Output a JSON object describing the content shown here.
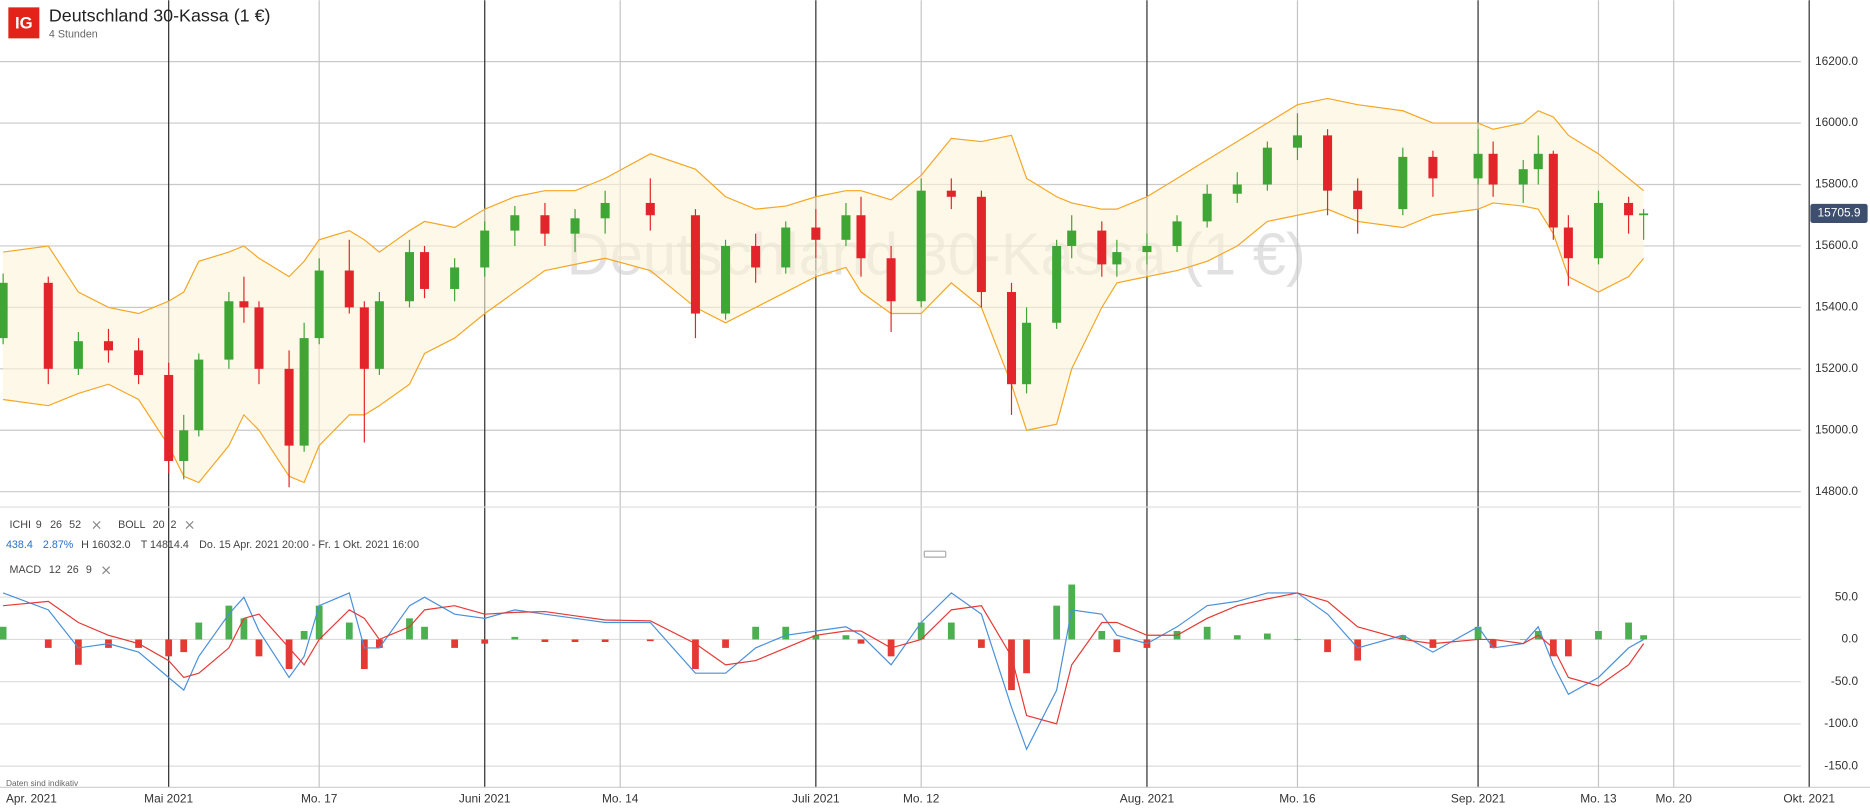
{
  "header": {
    "logo": "IG",
    "title": "Deutschland 30-Kassa (1 €)",
    "subtitle": "4 Stunden"
  },
  "indicators": [
    {
      "name": "ICHI",
      "params": [
        9,
        26,
        52
      ]
    },
    {
      "name": "BOLL",
      "params": [
        20,
        2
      ]
    }
  ],
  "stats": {
    "change": "438.4",
    "change_pct": "2.87%",
    "high": "H 16032.0",
    "low": "T 14814.4",
    "range": "Do. 15 Apr. 2021 20:00 - Fr. 1 Okt. 2021 16:00"
  },
  "macd_label": {
    "name": "MACD",
    "params": [
      12,
      26,
      9
    ]
  },
  "footnote": "Daten sind indikativ",
  "chart_data": {
    "type": "candlestick",
    "x": [
      "2021-04-16",
      "2021-04-21",
      "2021-04-23",
      "2021-04-27",
      "2021-04-29",
      "2021-05-03",
      "2021-05-04",
      "2021-05-05",
      "2021-05-07",
      "2021-05-10",
      "2021-05-11",
      "2021-05-13",
      "2021-05-14",
      "2021-05-17",
      "2021-05-19",
      "2021-05-20",
      "2021-05-21",
      "2021-05-25",
      "2021-05-26",
      "2021-05-28",
      "2021-06-01",
      "2021-06-03",
      "2021-06-07",
      "2021-06-09",
      "2021-06-11",
      "2021-06-16",
      "2021-06-21",
      "2021-06-23",
      "2021-06-25",
      "2021-06-29",
      "2021-07-01",
      "2021-07-05",
      "2021-07-06",
      "2021-07-08",
      "2021-07-12",
      "2021-07-14",
      "2021-07-16",
      "2021-07-20",
      "2021-07-21",
      "2021-07-23",
      "2021-07-26",
      "2021-07-28",
      "2021-07-29",
      "2021-08-02",
      "2021-08-04",
      "2021-08-06",
      "2021-08-10",
      "2021-08-12",
      "2021-08-16",
      "2021-08-18",
      "2021-08-20",
      "2021-08-25",
      "2021-08-27",
      "2021-09-01",
      "2021-09-02",
      "2021-09-06",
      "2021-09-07",
      "2021-09-08",
      "2021-09-09",
      "2021-09-13",
      "2021-09-15",
      "2021-09-16"
    ],
    "xlim": [
      "2021-04-15",
      "2021-10-01"
    ],
    "xticks": [
      {
        "value": "2021-04-15",
        "label": "Apr. 2021"
      },
      {
        "value": "2021-05-01",
        "label": "Mai 2021"
      },
      {
        "value": "2021-05-17",
        "label": "Mo. 17"
      },
      {
        "value": "2021-06-01",
        "label": "Juni 2021"
      },
      {
        "value": "2021-06-14",
        "label": "Mo. 14"
      },
      {
        "value": "2021-07-01",
        "label": "Juli 2021"
      },
      {
        "value": "2021-07-12",
        "label": "Mo. 12"
      },
      {
        "value": "2021-08-01",
        "label": "Aug. 2021"
      },
      {
        "value": "2021-08-16",
        "label": "Mo. 16"
      },
      {
        "value": "2021-09-01",
        "label": "Sep. 2021"
      },
      {
        "value": "2021-09-13",
        "label": "Mo. 13"
      },
      {
        "value": "2021-09-20",
        "label": "Mo. 20"
      },
      {
        "value": "2021-10-01",
        "label": "Okt. 2021"
      }
    ],
    "open": [
      15300,
      15480,
      15200,
      15290,
      15260,
      15180,
      14900,
      15000,
      15230,
      15420,
      15400,
      15200,
      14950,
      15300,
      15520,
      15400,
      15200,
      15420,
      15580,
      15460,
      15530,
      15650,
      15700,
      15640,
      15690,
      15740,
      15700,
      15380,
      15600,
      15530,
      15660,
      15620,
      15700,
      15560,
      15420,
      15780,
      15760,
      15450,
      15150,
      15350,
      15600,
      15650,
      15540,
      15580,
      15600,
      15680,
      15770,
      15800,
      15920,
      15960,
      15780,
      15720,
      15890,
      15820,
      15900,
      15800,
      15850,
      15900,
      15660,
      15560,
      15740,
      15700
    ],
    "high": [
      15510,
      15500,
      15320,
      15330,
      15300,
      15220,
      15050,
      15250,
      15450,
      15500,
      15420,
      15260,
      15350,
      15560,
      15620,
      15420,
      15450,
      15620,
      15600,
      15560,
      15680,
      15730,
      15740,
      15720,
      15780,
      15820,
      15720,
      15620,
      15640,
      15680,
      15720,
      15740,
      15760,
      15600,
      15820,
      15820,
      15780,
      15480,
      15400,
      15620,
      15700,
      15680,
      15620,
      15640,
      15700,
      15800,
      15840,
      15940,
      16032,
      15980,
      15820,
      15920,
      15910,
      15980,
      15940,
      15880,
      15960,
      15910,
      15700,
      15780,
      15760,
      15720
    ],
    "low": [
      15280,
      15150,
      15180,
      15220,
      15150,
      14860,
      14840,
      14980,
      15200,
      15350,
      15150,
      14814.4,
      14930,
      15280,
      15380,
      14960,
      15180,
      15400,
      15430,
      15420,
      15500,
      15600,
      15600,
      15580,
      15640,
      15650,
      15300,
      15360,
      15480,
      15510,
      15560,
      15600,
      15500,
      15320,
      15400,
      15720,
      15400,
      15050,
      15120,
      15330,
      15560,
      15500,
      15500,
      15540,
      15580,
      15660,
      15740,
      15780,
      15880,
      15700,
      15640,
      15700,
      15760,
      15800,
      15760,
      15740,
      15800,
      15620,
      15470,
      15540,
      15640,
      15620
    ],
    "close": [
      15480,
      15200,
      15290,
      15260,
      15180,
      14900,
      15000,
      15230,
      15420,
      15400,
      15200,
      14950,
      15300,
      15520,
      15400,
      15200,
      15420,
      15580,
      15460,
      15530,
      15650,
      15700,
      15640,
      15690,
      15740,
      15700,
      15380,
      15600,
      15530,
      15660,
      15620,
      15700,
      15560,
      15420,
      15780,
      15760,
      15450,
      15150,
      15350,
      15600,
      15650,
      15540,
      15580,
      15600,
      15680,
      15770,
      15800,
      15920,
      15960,
      15780,
      15720,
      15890,
      15820,
      15900,
      15800,
      15850,
      15900,
      15660,
      15560,
      15740,
      15700,
      15705.9
    ],
    "up_color": "#3fa535",
    "down_color": "#e3242b",
    "ylim": [
      14750,
      16400
    ],
    "yticks": [
      {
        "value": 14800,
        "label": "14800.0"
      },
      {
        "value": 15000,
        "label": "15000.0"
      },
      {
        "value": 15200,
        "label": "15200.0"
      },
      {
        "value": 15400,
        "label": "15400.0"
      },
      {
        "value": 15600,
        "label": "15600.0"
      },
      {
        "value": 15800,
        "label": "15800.0"
      },
      {
        "value": 16000,
        "label": "16000.0"
      },
      {
        "value": 16200,
        "label": "16200.0"
      }
    ],
    "last_price": 15705.9,
    "bollinger": {
      "color": "#f5a623",
      "upper": [
        15580,
        15600,
        15450,
        15400,
        15380,
        15420,
        15450,
        15550,
        15580,
        15600,
        15560,
        15500,
        15550,
        15620,
        15650,
        15620,
        15580,
        15650,
        15680,
        15660,
        15720,
        15760,
        15780,
        15780,
        15820,
        15900,
        15850,
        15760,
        15720,
        15730,
        15760,
        15780,
        15780,
        15750,
        15830,
        15950,
        15940,
        15960,
        15820,
        15760,
        15740,
        15720,
        15720,
        15760,
        15820,
        15880,
        15940,
        16000,
        16060,
        16080,
        16060,
        16040,
        16000,
        16000,
        15980,
        16000,
        16040,
        16020,
        15960,
        15900,
        15820,
        15780
      ],
      "lower": [
        15100,
        15080,
        15120,
        15150,
        15100,
        14950,
        14850,
        14830,
        14950,
        15050,
        15000,
        14850,
        14830,
        14950,
        15050,
        15050,
        15080,
        15150,
        15250,
        15300,
        15380,
        15450,
        15520,
        15540,
        15560,
        15520,
        15400,
        15350,
        15400,
        15450,
        15500,
        15530,
        15450,
        15380,
        15380,
        15480,
        15400,
        15150,
        15000,
        15020,
        15200,
        15400,
        15480,
        15500,
        15520,
        15550,
        15600,
        15680,
        15700,
        15720,
        15680,
        15660,
        15700,
        15720,
        15740,
        15730,
        15720,
        15640,
        15500,
        15450,
        15500,
        15560
      ]
    },
    "macd": {
      "ylim": [
        -168,
        96
      ],
      "yticks": [
        {
          "value": -150,
          "label": "-150.0"
        },
        {
          "value": -100,
          "label": "-100.0"
        },
        {
          "value": -50,
          "label": "-50.0"
        },
        {
          "value": 0,
          "label": "0.0"
        },
        {
          "value": 50,
          "label": "50.0"
        }
      ],
      "line": {
        "color": "#4a90d9",
        "values": [
          55,
          35,
          -10,
          -5,
          -15,
          -45,
          -60,
          -20,
          30,
          50,
          10,
          -45,
          -20,
          40,
          55,
          -10,
          -10,
          40,
          50,
          30,
          25,
          35,
          30,
          25,
          20,
          20,
          -40,
          -40,
          -10,
          5,
          10,
          15,
          5,
          -30,
          20,
          55,
          30,
          -80,
          -130,
          -60,
          35,
          30,
          5,
          -5,
          15,
          40,
          45,
          55,
          55,
          30,
          -10,
          5,
          -15,
          15,
          -10,
          -5,
          15,
          -30,
          -65,
          -45,
          -10,
          0
        ]
      },
      "signal": {
        "color": "#e53935",
        "values": [
          40,
          45,
          20,
          5,
          -5,
          -25,
          -45,
          -40,
          -10,
          25,
          30,
          -10,
          -30,
          0,
          35,
          25,
          0,
          15,
          35,
          40,
          30,
          32,
          33,
          28,
          23,
          22,
          -5,
          -30,
          -25,
          -10,
          5,
          10,
          10,
          -10,
          0,
          35,
          40,
          -20,
          -90,
          -100,
          -30,
          20,
          20,
          5,
          5,
          25,
          40,
          48,
          55,
          45,
          15,
          0,
          -5,
          0,
          0,
          -5,
          5,
          -10,
          -45,
          -55,
          -30,
          -5
        ]
      },
      "histogram": {
        "up_color": "#4caf50",
        "down_color": "#e53935",
        "values": [
          15,
          -10,
          -30,
          -10,
          -10,
          -20,
          -15,
          20,
          40,
          25,
          -20,
          -35,
          10,
          40,
          20,
          -35,
          -10,
          25,
          15,
          -10,
          -5,
          3,
          -3,
          -3,
          -3,
          -2,
          -35,
          -10,
          15,
          15,
          5,
          5,
          -5,
          -20,
          20,
          20,
          -10,
          -60,
          -40,
          40,
          65,
          10,
          -15,
          -10,
          10,
          15,
          5,
          7,
          0,
          -15,
          -25,
          5,
          -10,
          15,
          -10,
          0,
          10,
          -20,
          -20,
          10,
          20,
          5
        ]
      }
    }
  }
}
